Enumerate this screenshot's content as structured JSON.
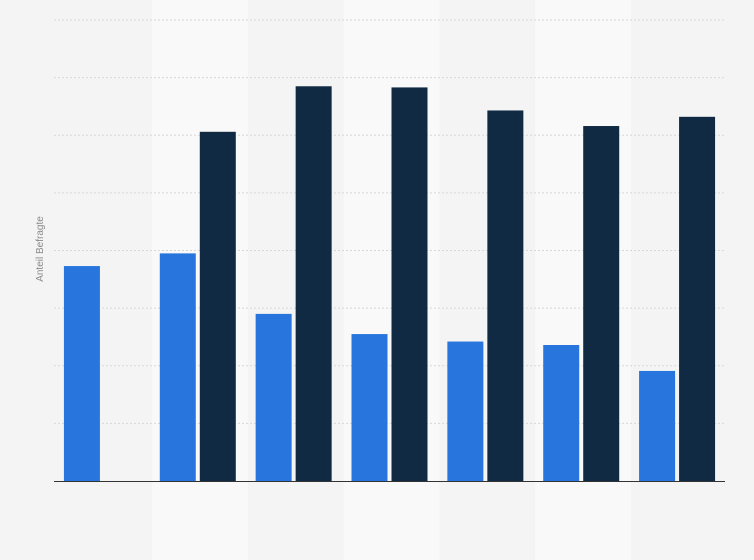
{
  "chart_data": {
    "type": "bar",
    "title": "",
    "xlabel": "",
    "ylabel": "Anteil Befragte",
    "ylim": [
      0,
      8
    ],
    "grid": true,
    "legend": "none",
    "categories": [
      "",
      "",
      "",
      "",
      "",
      "",
      ""
    ],
    "series": [
      {
        "color": "#2876dd",
        "values": [
          3.73,
          3.95,
          2.9,
          2.55,
          2.42,
          2.36,
          1.91
        ]
      },
      {
        "color": "#0f2a42",
        "values": [
          null,
          6.06,
          6.85,
          6.83,
          6.43,
          6.16,
          6.32
        ]
      }
    ]
  },
  "colors": {
    "background": "#f4f4f4",
    "band_light": "#f9f9f9",
    "grid": "#d7d7d7",
    "axis": "#333333"
  }
}
